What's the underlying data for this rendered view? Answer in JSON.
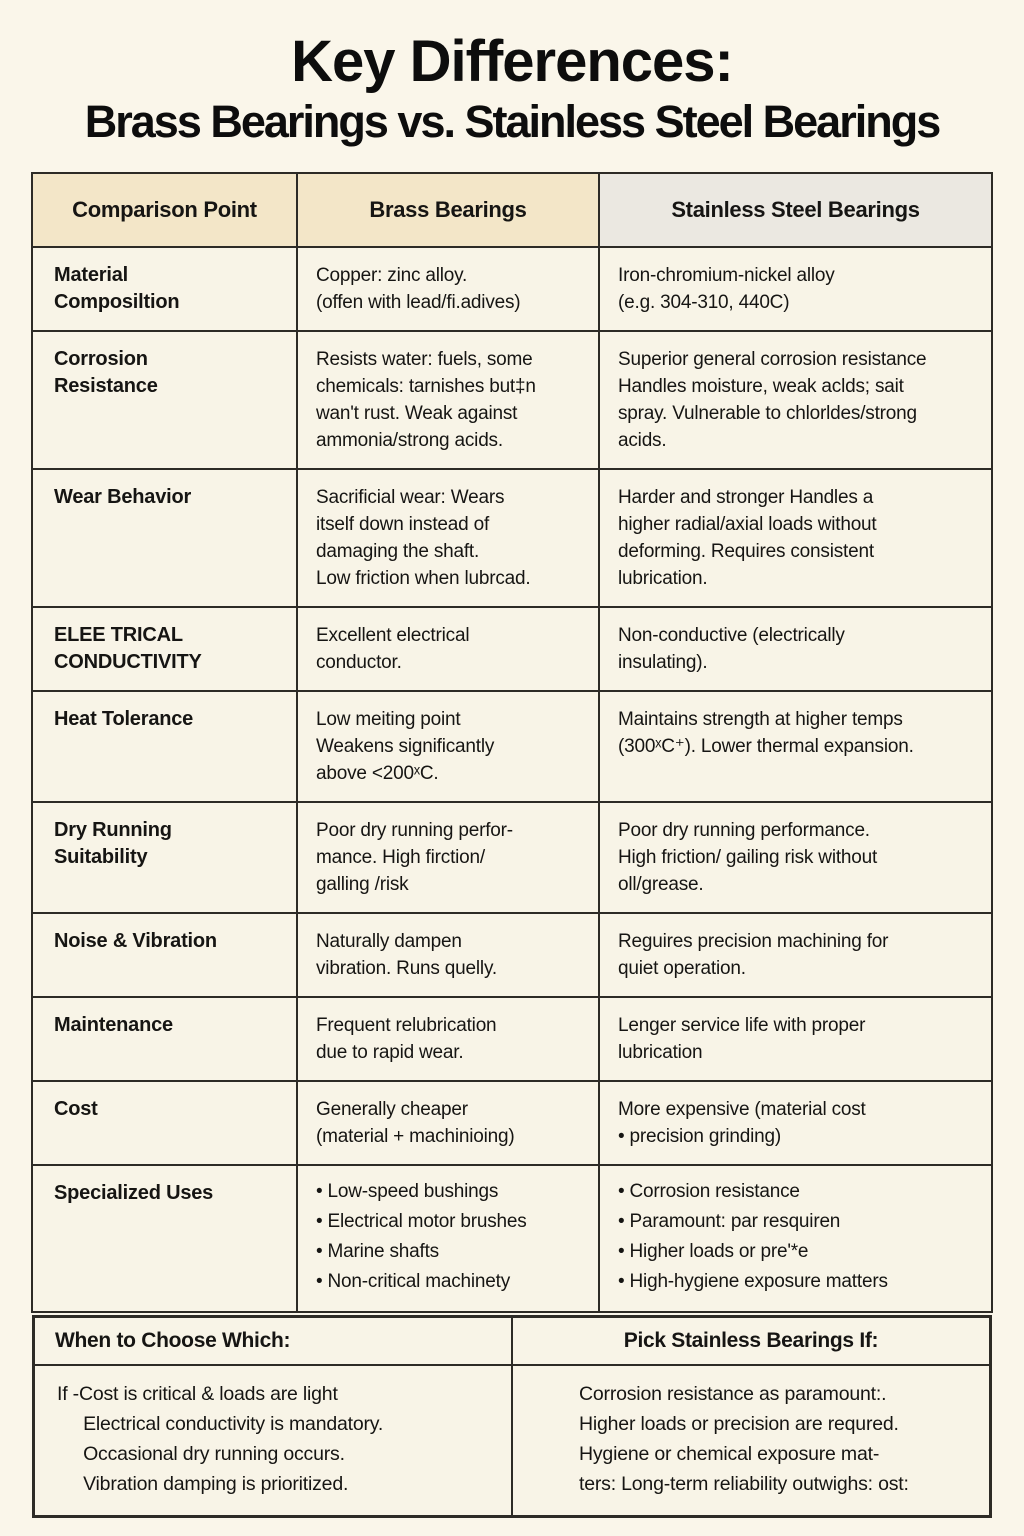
{
  "page": {
    "title": "Key Differences:",
    "subtitle": "Brass Bearings vs. Stainless Steel Bearings"
  },
  "colors": {
    "background": "#faf6ea",
    "cell_background": "#f8f4e7",
    "header_beige": "#f3e6c8",
    "header_gray": "#ebe8e1",
    "border": "#2d2b26",
    "text": "#161513"
  },
  "table": {
    "headers": [
      "Comparison Point",
      "Brass Bearings",
      "Stainless Steel Bearings"
    ],
    "rows": [
      {
        "point": "Material\nComposiltion",
        "brass": "Copper: zinc alloy.\n(offen with lead/fi.adives)",
        "steel": "Iron-chromium-nickel alloy\n(e.g. 304-310, 440C)"
      },
      {
        "point": "Corrosion\nResistance",
        "brass": "Resists water: fuels, some\nchemicals: tarnishes but‡n\nwan't rust. Weak against\nammonia/strong acids.",
        "steel": "Superior general corrosion resistance\nHandles moisture, weak aclds; sait\nspray. Vulnerable to chlorldes/strong\nacids."
      },
      {
        "point": "Wear Behavior",
        "brass": "Sacrificial wear: Wears\nitself down instead of\ndamaging the shaft.\nLow friction when lubrcad.",
        "steel": "Harder and stronger  Handles a\nhigher radial/axial loads without\ndeforming. Requires consistent\nlubrication."
      },
      {
        "point": "ELEE TRICAL\nCONDUCTIVITY",
        "brass": "Excellent electrical\nconductor.",
        "steel": "Non-conductive (electrically\ninsulating)."
      },
      {
        "point": "Heat Tolerance",
        "brass": "Low meiting point\nWeakens significantly\nabove <200ˣC.",
        "steel": "Maintains strength at higher temps\n(300ˣC⁺). Lower thermal expansion."
      },
      {
        "point": "Dry Running\nSuitability",
        "brass": "Poor dry running perfor-\nmance. High firction/\ngalling /risk",
        "steel": "Poor dry running performance.\nHigh friction/ gailing risk without\noll/grease."
      },
      {
        "point": "Noise & Vibration",
        "brass": "Naturally dampen\nvibration. Runs quelly.",
        "steel": "Reguires precision machining for\nquiet operation."
      },
      {
        "point": "Maintenance",
        "brass": "Frequent relubrication\ndue to rapid wear.",
        "steel": "Lenger service life with proper\nlubrication"
      },
      {
        "point": "Cost",
        "brass": "Generally cheaper\n(material + machinioing)",
        "steel": "More expensive (material cost\n•  precision grinding)"
      },
      {
        "point": "Specialized Uses",
        "brass": "•  Low-speed bushings\n•  Electrical motor brushes\n•  Marine shafts\n•  Non-critical machinety",
        "steel": "•  Corrosion resistance\n•  Paramount: par resquiren\n•  Higher loads or pre'*e\n•  High-hygiene exposure matters"
      }
    ]
  },
  "footer": {
    "left_header": "When to Choose Which:",
    "right_header": "Pick Stainless Bearings If:",
    "left_body": "If -Cost is critical & loads are light\n     Electrical conductivity is mandatory.\n     Occasional dry running occurs.\n     Vibration damping is prioritized.",
    "right_body": "Corrosion resistance as paramount:.\nHigher loads or precision are requred.\nHygiene or chemical exposure mat-\nters: Long-term reliability outwighs: ost:"
  }
}
